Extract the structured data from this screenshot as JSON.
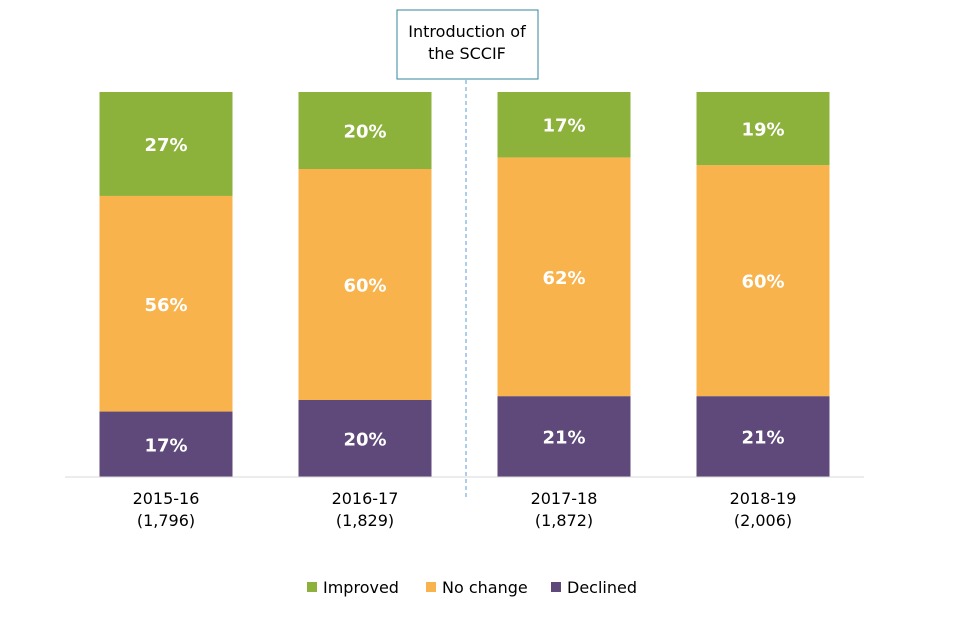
{
  "chart_data": {
    "type": "bar",
    "stacked": true,
    "normalized_percent": true,
    "categories": [
      "2015-16",
      "2016-17",
      "2017-18",
      "2018-19"
    ],
    "category_counts": [
      "(1,796)",
      "(1,829)",
      "(1,872)",
      "(2,006)"
    ],
    "series": [
      {
        "name": "Declined",
        "color": "#5f497a",
        "values": [
          17,
          20,
          21,
          21
        ]
      },
      {
        "name": "No change",
        "color": "#f8b34d",
        "values": [
          56,
          60,
          62,
          60
        ]
      },
      {
        "name": "Improved",
        "color": "#8db23c",
        "values": [
          27,
          20,
          17,
          19
        ]
      }
    ],
    "value_labels": true,
    "value_suffix": "%",
    "ylim": [
      0,
      100
    ],
    "grid": false,
    "legend_position": "bottom",
    "annotation": {
      "text_lines": [
        "Introduction of",
        "the SCCIF"
      ],
      "between_categories": [
        "2016-17",
        "2017-18"
      ],
      "line_style": "dashed",
      "line_color": "#5b9bd5",
      "box_border_color": "#31849b"
    }
  }
}
